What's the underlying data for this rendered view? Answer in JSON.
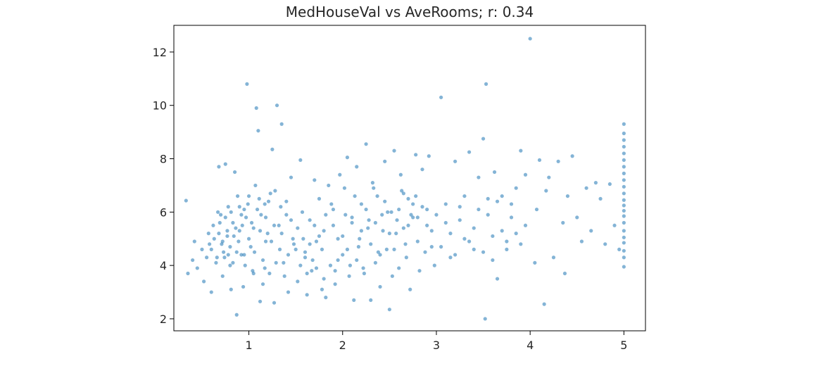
{
  "chart_data": {
    "type": "scatter",
    "title": "MedHouseVal vs AveRooms; r: 0.34",
    "xlabel": "",
    "ylabel": "",
    "xlim": [
      0.2,
      5.23
    ],
    "ylim": [
      1.55,
      13.0
    ],
    "xticks": [
      1,
      2,
      3,
      4,
      5
    ],
    "yticks": [
      2,
      4,
      6,
      8,
      10,
      12
    ],
    "grid": false,
    "marker_color": "#1f77b4",
    "marker_alpha": 0.55,
    "series": [
      {
        "points": [
          [
            0.33,
            6.43
          ],
          [
            0.35,
            3.7
          ],
          [
            0.4,
            4.2
          ],
          [
            0.42,
            4.9
          ],
          [
            0.45,
            3.9
          ],
          [
            0.5,
            4.6
          ],
          [
            0.52,
            3.4
          ],
          [
            0.55,
            4.3
          ],
          [
            0.57,
            5.2
          ],
          [
            0.58,
            4.8
          ],
          [
            0.6,
            3.0
          ],
          [
            0.62,
            5.5
          ],
          [
            0.65,
            4.1
          ],
          [
            0.67,
            6.0
          ],
          [
            0.68,
            7.7
          ],
          [
            0.7,
            5.9
          ],
          [
            0.72,
            3.6
          ],
          [
            0.73,
            4.5
          ],
          [
            0.75,
            7.8
          ],
          [
            0.77,
            5.1
          ],
          [
            0.78,
            6.2
          ],
          [
            0.8,
            4.0
          ],
          [
            0.81,
            3.1
          ],
          [
            0.83,
            5.6
          ],
          [
            0.85,
            7.5
          ],
          [
            0.87,
            2.15
          ],
          [
            0.88,
            6.6
          ],
          [
            0.9,
            5.3
          ],
          [
            0.92,
            4.4
          ],
          [
            0.94,
            3.2
          ],
          [
            0.95,
            6.1
          ],
          [
            0.97,
            5.8
          ],
          [
            0.98,
            10.8
          ],
          [
            1.0,
            6.6
          ],
          [
            1.02,
            4.7
          ],
          [
            1.04,
            3.8
          ],
          [
            1.05,
            5.4
          ],
          [
            1.07,
            7.0
          ],
          [
            1.08,
            9.9
          ],
          [
            1.1,
            9.05
          ],
          [
            1.12,
            2.65
          ],
          [
            1.13,
            5.9
          ],
          [
            1.15,
            3.3
          ],
          [
            1.17,
            6.3
          ],
          [
            1.18,
            4.9
          ],
          [
            1.2,
            5.2
          ],
          [
            1.22,
            3.7
          ],
          [
            1.25,
            8.35
          ],
          [
            1.27,
            2.6
          ],
          [
            1.28,
            6.8
          ],
          [
            1.3,
            10.0
          ],
          [
            1.32,
            5.5
          ],
          [
            1.35,
            9.3
          ],
          [
            1.37,
            4.1
          ],
          [
            1.4,
            6.4
          ],
          [
            1.42,
            3.0
          ],
          [
            1.45,
            7.3
          ],
          [
            1.47,
            5.0
          ],
          [
            1.5,
            4.6
          ],
          [
            1.52,
            3.4
          ],
          [
            1.55,
            7.95
          ],
          [
            1.57,
            6.0
          ],
          [
            1.6,
            4.3
          ],
          [
            1.62,
            2.9
          ],
          [
            1.65,
            5.7
          ],
          [
            1.67,
            3.8
          ],
          [
            1.7,
            7.2
          ],
          [
            1.72,
            4.9
          ],
          [
            1.75,
            6.5
          ],
          [
            1.78,
            3.1
          ],
          [
            1.8,
            5.3
          ],
          [
            1.82,
            2.8
          ],
          [
            1.85,
            7.0
          ],
          [
            1.87,
            4.0
          ],
          [
            1.9,
            6.1
          ],
          [
            1.92,
            3.3
          ],
          [
            1.95,
            5.0
          ],
          [
            1.97,
            7.4
          ],
          [
            2.0,
            4.4
          ],
          [
            2.02,
            6.9
          ],
          [
            2.05,
            8.05
          ],
          [
            2.07,
            3.6
          ],
          [
            2.1,
            5.6
          ],
          [
            2.12,
            2.7
          ],
          [
            2.15,
            7.7
          ],
          [
            2.17,
            4.7
          ],
          [
            2.2,
            6.3
          ],
          [
            2.22,
            3.9
          ],
          [
            2.25,
            8.55
          ],
          [
            2.27,
            5.4
          ],
          [
            2.3,
            2.7
          ],
          [
            2.32,
            7.1
          ],
          [
            2.35,
            4.1
          ],
          [
            2.37,
            6.6
          ],
          [
            2.4,
            3.2
          ],
          [
            2.42,
            5.9
          ],
          [
            2.45,
            7.9
          ],
          [
            2.47,
            4.6
          ],
          [
            2.5,
            2.35
          ],
          [
            2.52,
            6.0
          ],
          [
            2.55,
            8.3
          ],
          [
            2.57,
            5.2
          ],
          [
            2.6,
            3.9
          ],
          [
            2.62,
            7.4
          ],
          [
            2.65,
            6.7
          ],
          [
            2.67,
            4.8
          ],
          [
            2.7,
            5.5
          ],
          [
            2.72,
            3.1
          ],
          [
            2.75,
            6.3
          ],
          [
            2.78,
            8.15
          ],
          [
            2.8,
            5.8
          ],
          [
            2.82,
            3.8
          ],
          [
            2.85,
            7.6
          ],
          [
            2.88,
            4.5
          ],
          [
            2.9,
            6.1
          ],
          [
            2.92,
            8.1
          ],
          [
            2.95,
            5.3
          ],
          [
            2.98,
            4.0
          ],
          [
            3.05,
            10.3
          ],
          [
            3.1,
            5.6
          ],
          [
            3.15,
            4.3
          ],
          [
            3.2,
            7.9
          ],
          [
            3.25,
            6.2
          ],
          [
            3.3,
            5.0
          ],
          [
            3.35,
            8.25
          ],
          [
            3.4,
            4.6
          ],
          [
            3.45,
            7.3
          ],
          [
            3.5,
            8.75
          ],
          [
            3.52,
            2.0
          ],
          [
            3.53,
            10.8
          ],
          [
            3.55,
            6.5
          ],
          [
            3.6,
            5.1
          ],
          [
            3.62,
            7.5
          ],
          [
            3.65,
            3.5
          ],
          [
            3.7,
            6.6
          ],
          [
            3.75,
            4.9
          ],
          [
            3.8,
            6.3
          ],
          [
            3.85,
            5.2
          ],
          [
            3.9,
            8.3
          ],
          [
            3.95,
            7.4
          ],
          [
            4.0,
            12.5
          ],
          [
            4.05,
            4.1
          ],
          [
            4.07,
            6.1
          ],
          [
            4.1,
            7.95
          ],
          [
            4.15,
            2.55
          ],
          [
            4.17,
            6.8
          ],
          [
            4.2,
            7.3
          ],
          [
            4.25,
            4.3
          ],
          [
            4.3,
            7.9
          ],
          [
            4.35,
            5.6
          ],
          [
            4.37,
            3.7
          ],
          [
            4.4,
            6.6
          ],
          [
            4.45,
            8.1
          ],
          [
            4.5,
            5.8
          ],
          [
            4.55,
            4.9
          ],
          [
            4.6,
            6.9
          ],
          [
            4.65,
            5.3
          ],
          [
            4.7,
            7.1
          ],
          [
            4.75,
            6.5
          ],
          [
            4.8,
            4.8
          ],
          [
            4.85,
            7.05
          ],
          [
            4.9,
            5.5
          ],
          [
            4.95,
            4.6
          ],
          [
            5.0,
            3.95
          ],
          [
            5.0,
            4.3
          ],
          [
            5.0,
            4.55
          ],
          [
            5.0,
            4.85
          ],
          [
            5.0,
            5.05
          ],
          [
            5.0,
            5.3
          ],
          [
            5.0,
            5.6
          ],
          [
            5.0,
            5.85
          ],
          [
            5.0,
            6.05
          ],
          [
            5.0,
            6.25
          ],
          [
            5.0,
            6.45
          ],
          [
            5.0,
            6.7
          ],
          [
            5.0,
            6.95
          ],
          [
            5.0,
            7.2
          ],
          [
            5.0,
            7.45
          ],
          [
            5.0,
            7.7
          ],
          [
            5.0,
            7.95
          ],
          [
            5.0,
            8.2
          ],
          [
            5.0,
            8.45
          ],
          [
            5.0,
            8.7
          ],
          [
            5.0,
            8.95
          ],
          [
            5.0,
            9.3
          ],
          [
            1.55,
            4.0
          ],
          [
            1.6,
            4.5
          ],
          [
            1.58,
            5.0
          ],
          [
            1.62,
            3.7
          ],
          [
            1.65,
            4.8
          ],
          [
            1.7,
            5.5
          ],
          [
            1.68,
            4.2
          ],
          [
            1.72,
            3.9
          ],
          [
            1.75,
            5.1
          ],
          [
            1.78,
            4.6
          ],
          [
            1.8,
            3.5
          ],
          [
            1.82,
            5.9
          ],
          [
            1.52,
            5.4
          ],
          [
            1.48,
            4.8
          ],
          [
            1.45,
            5.7
          ],
          [
            1.42,
            4.4
          ],
          [
            1.4,
            5.9
          ],
          [
            1.38,
            3.6
          ],
          [
            1.35,
            5.2
          ],
          [
            1.33,
            4.6
          ],
          [
            1.0,
            5.0
          ],
          [
            1.03,
            5.6
          ],
          [
            1.06,
            4.5
          ],
          [
            1.09,
            6.1
          ],
          [
            1.12,
            5.3
          ],
          [
            1.15,
            4.2
          ],
          [
            1.18,
            5.8
          ],
          [
            1.21,
            6.4
          ],
          [
            1.24,
            4.9
          ],
          [
            1.27,
            5.5
          ],
          [
            0.95,
            4.4
          ],
          [
            0.92,
            5.9
          ],
          [
            0.89,
            4.9
          ],
          [
            0.86,
            5.4
          ],
          [
            0.83,
            4.1
          ],
          [
            0.8,
            4.7
          ],
          [
            0.77,
            5.3
          ],
          [
            0.74,
            4.3
          ],
          [
            0.71,
            4.8
          ],
          [
            0.68,
            5.2
          ],
          [
            2.0,
            5.1
          ],
          [
            2.05,
            4.6
          ],
          [
            2.1,
            5.8
          ],
          [
            2.15,
            4.2
          ],
          [
            2.2,
            5.3
          ],
          [
            2.25,
            6.1
          ],
          [
            2.3,
            4.8
          ],
          [
            2.35,
            5.6
          ],
          [
            2.4,
            4.4
          ],
          [
            2.45,
            6.4
          ],
          [
            2.5,
            5.2
          ],
          [
            2.55,
            4.6
          ],
          [
            2.6,
            6.1
          ],
          [
            2.65,
            5.4
          ],
          [
            2.7,
            6.5
          ],
          [
            2.75,
            5.8
          ],
          [
            2.8,
            4.9
          ],
          [
            2.85,
            6.2
          ],
          [
            2.9,
            5.5
          ],
          [
            2.95,
            4.7
          ],
          [
            1.9,
            5.5
          ],
          [
            1.95,
            4.2
          ],
          [
            1.88,
            6.3
          ],
          [
            1.92,
            3.8
          ],
          [
            2.03,
            5.9
          ],
          [
            2.08,
            4.0
          ],
          [
            2.13,
            6.6
          ],
          [
            2.18,
            5.0
          ],
          [
            2.23,
            3.7
          ],
          [
            2.28,
            5.7
          ],
          [
            2.33,
            6.9
          ],
          [
            2.38,
            4.5
          ],
          [
            2.43,
            5.3
          ],
          [
            2.48,
            6.0
          ],
          [
            2.53,
            3.6
          ],
          [
            2.58,
            5.7
          ],
          [
            2.63,
            6.8
          ],
          [
            2.68,
            4.3
          ],
          [
            2.73,
            5.9
          ],
          [
            2.78,
            6.6
          ],
          [
            0.6,
            4.6
          ],
          [
            0.63,
            5.0
          ],
          [
            0.66,
            4.3
          ],
          [
            0.69,
            5.6
          ],
          [
            0.72,
            4.9
          ],
          [
            0.75,
            5.8
          ],
          [
            0.78,
            4.4
          ],
          [
            0.81,
            6.0
          ],
          [
            0.84,
            5.1
          ],
          [
            0.87,
            4.5
          ],
          [
            0.9,
            6.2
          ],
          [
            0.93,
            5.5
          ],
          [
            0.96,
            4.0
          ],
          [
            0.99,
            6.3
          ],
          [
            1.05,
            3.7
          ],
          [
            1.11,
            6.5
          ],
          [
            1.17,
            3.9
          ],
          [
            1.23,
            6.7
          ],
          [
            1.29,
            4.1
          ],
          [
            1.34,
            6.2
          ],
          [
            3.0,
            5.9
          ],
          [
            3.05,
            4.7
          ],
          [
            3.1,
            6.3
          ],
          [
            3.15,
            5.2
          ],
          [
            3.2,
            4.4
          ],
          [
            3.25,
            5.7
          ],
          [
            3.3,
            6.6
          ],
          [
            3.35,
            4.9
          ],
          [
            3.4,
            5.4
          ],
          [
            3.45,
            6.1
          ],
          [
            3.5,
            4.5
          ],
          [
            3.55,
            5.9
          ],
          [
            3.6,
            4.2
          ],
          [
            3.65,
            6.4
          ],
          [
            3.7,
            5.3
          ],
          [
            3.75,
            4.6
          ],
          [
            3.8,
            5.8
          ],
          [
            3.85,
            6.9
          ],
          [
            3.9,
            4.8
          ],
          [
            3.95,
            5.5
          ]
        ]
      }
    ]
  }
}
